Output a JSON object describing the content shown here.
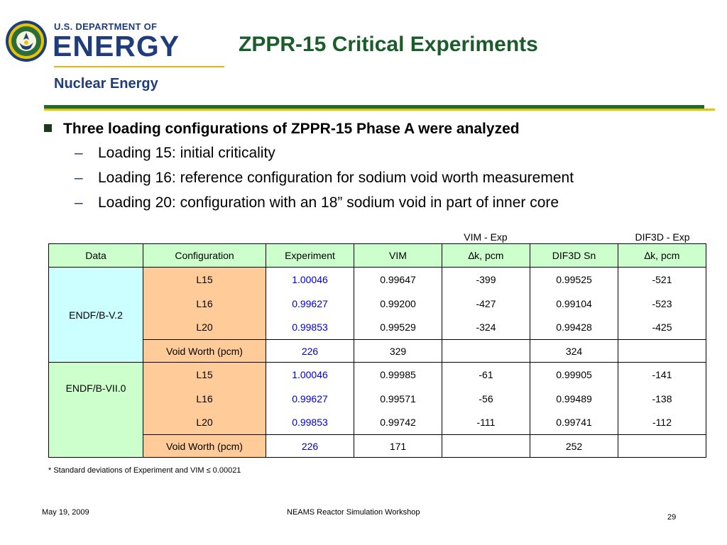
{
  "logo": {
    "dept": "U.S. DEPARTMENT OF",
    "energy": "ENERGY",
    "subtitle": "Nuclear Energy"
  },
  "title": "ZPPR-15 Critical Experiments",
  "bullets": {
    "main": "Three loading configurations of ZPPR-15 Phase A were analyzed",
    "sub": [
      "Loading 15: initial criticality",
      "Loading 16: reference configuration for sodium void worth measurement",
      "Loading 20: configuration with an 18” sodium void in part of inner core"
    ]
  },
  "table": {
    "group_headers": [
      "VIM - Exp",
      "DIF3D - Exp"
    ],
    "headers": [
      "Data",
      "Configuration",
      "Experiment",
      "VIM",
      "∆k, pcm",
      "DIF3D Sn",
      "∆k, pcm"
    ],
    "libraries": [
      "ENDF/B-V.2",
      "ENDF/B-VII.0"
    ],
    "rows": [
      [
        "L15",
        "1.00046",
        "0.99647",
        "-399",
        "0.99525",
        "-521"
      ],
      [
        "L16",
        "0.99627",
        "0.99200",
        "-427",
        "0.99104",
        "-523"
      ],
      [
        "L20",
        "0.99853",
        "0.99529",
        "-324",
        "0.99428",
        "-425"
      ],
      [
        "Void Worth (pcm)",
        "226",
        "329",
        "",
        "324",
        ""
      ],
      [
        "L15",
        "1.00046",
        "0.99985",
        "-61",
        "0.99905",
        "-141"
      ],
      [
        "L16",
        "0.99627",
        "0.99571",
        "-56",
        "0.99489",
        "-138"
      ],
      [
        "L20",
        "0.99853",
        "0.99742",
        "-111",
        "0.99741",
        "-112"
      ],
      [
        "Void Worth (pcm)",
        "226",
        "171",
        "",
        "252",
        ""
      ]
    ]
  },
  "footnote": "* Standard deviations of Experiment and VIM ≤ 0.00021",
  "footer": {
    "date": "May 19, 2009",
    "event": "NEAMS Reactor Simulation Workshop",
    "page": "29"
  },
  "colors": {
    "title_green": "#1a5c2a",
    "logo_blue": "#1f3d7a",
    "header_fill": "#ccffcc",
    "config_fill": "#ffcc99",
    "v2_fill": "#ccffff",
    "vii_fill": "#ccffcc",
    "experiment_text": "#0000cc"
  },
  "icons": [
    "doe-seal-icon"
  ]
}
